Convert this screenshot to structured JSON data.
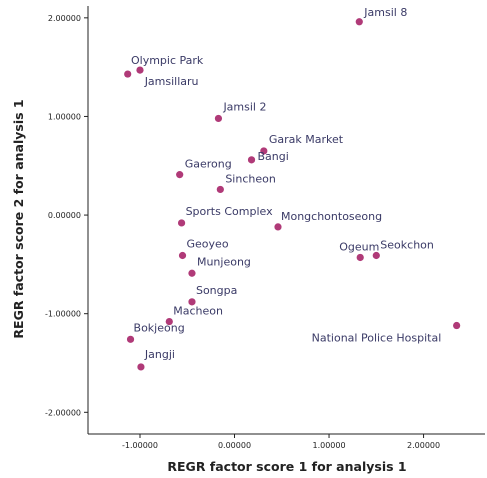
{
  "colors": {
    "point": "#b03a78",
    "axis": "#222222",
    "label": "#3a3a66"
  },
  "chart_data": {
    "type": "scatter",
    "title": "",
    "xlabel": "REGR factor score   1 for analysis 1",
    "ylabel": "REGR factor score   2 for analysis 1",
    "xlim": [
      -1.55,
      2.65
    ],
    "ylim": [
      -2.22,
      2.12
    ],
    "xticks": [
      -1.0,
      0.0,
      1.0,
      2.0
    ],
    "yticks": [
      -2.0,
      -1.0,
      0.0,
      1.0,
      2.0
    ],
    "xtick_labels": [
      "-1.00000",
      "0.00000",
      "1.00000",
      "2.00000"
    ],
    "ytick_labels": [
      "-2.00000",
      "-1.00000",
      "0.00000",
      "1.00000",
      "2.00000"
    ],
    "grid": false,
    "points": [
      {
        "label": "Jamsil 8",
        "x": 1.32,
        "y": 1.96
      },
      {
        "label": "Olympic Park",
        "x": -1.0,
        "y": 1.47
      },
      {
        "label": "Jamsillaru",
        "x": -1.13,
        "y": 1.43
      },
      {
        "label": "Jamsil 2",
        "x": -0.17,
        "y": 0.98
      },
      {
        "label": "Garak Market",
        "x": 0.31,
        "y": 0.65
      },
      {
        "label": "Bangi",
        "x": 0.18,
        "y": 0.56
      },
      {
        "label": "Gaerong",
        "x": -0.58,
        "y": 0.41
      },
      {
        "label": "Sincheon",
        "x": -0.15,
        "y": 0.26
      },
      {
        "label": "Sports Complex",
        "x": -0.56,
        "y": -0.08
      },
      {
        "label": "Mongchontoseong",
        "x": 0.46,
        "y": -0.12
      },
      {
        "label": "Geoyeo",
        "x": -0.55,
        "y": -0.41
      },
      {
        "label": "Ogeum",
        "x": 1.33,
        "y": -0.43
      },
      {
        "label": "Seokchon",
        "x": 1.5,
        "y": -0.41
      },
      {
        "label": "Munjeong",
        "x": -0.45,
        "y": -0.59
      },
      {
        "label": "Songpa",
        "x": -0.45,
        "y": -0.88
      },
      {
        "label": "Macheon",
        "x": -0.69,
        "y": -1.08
      },
      {
        "label": "Bokjeong",
        "x": -1.1,
        "y": -1.26
      },
      {
        "label": "Jangji",
        "x": -0.99,
        "y": -1.54
      },
      {
        "label": "National Police Hospital",
        "x": 2.35,
        "y": -1.12
      }
    ]
  }
}
